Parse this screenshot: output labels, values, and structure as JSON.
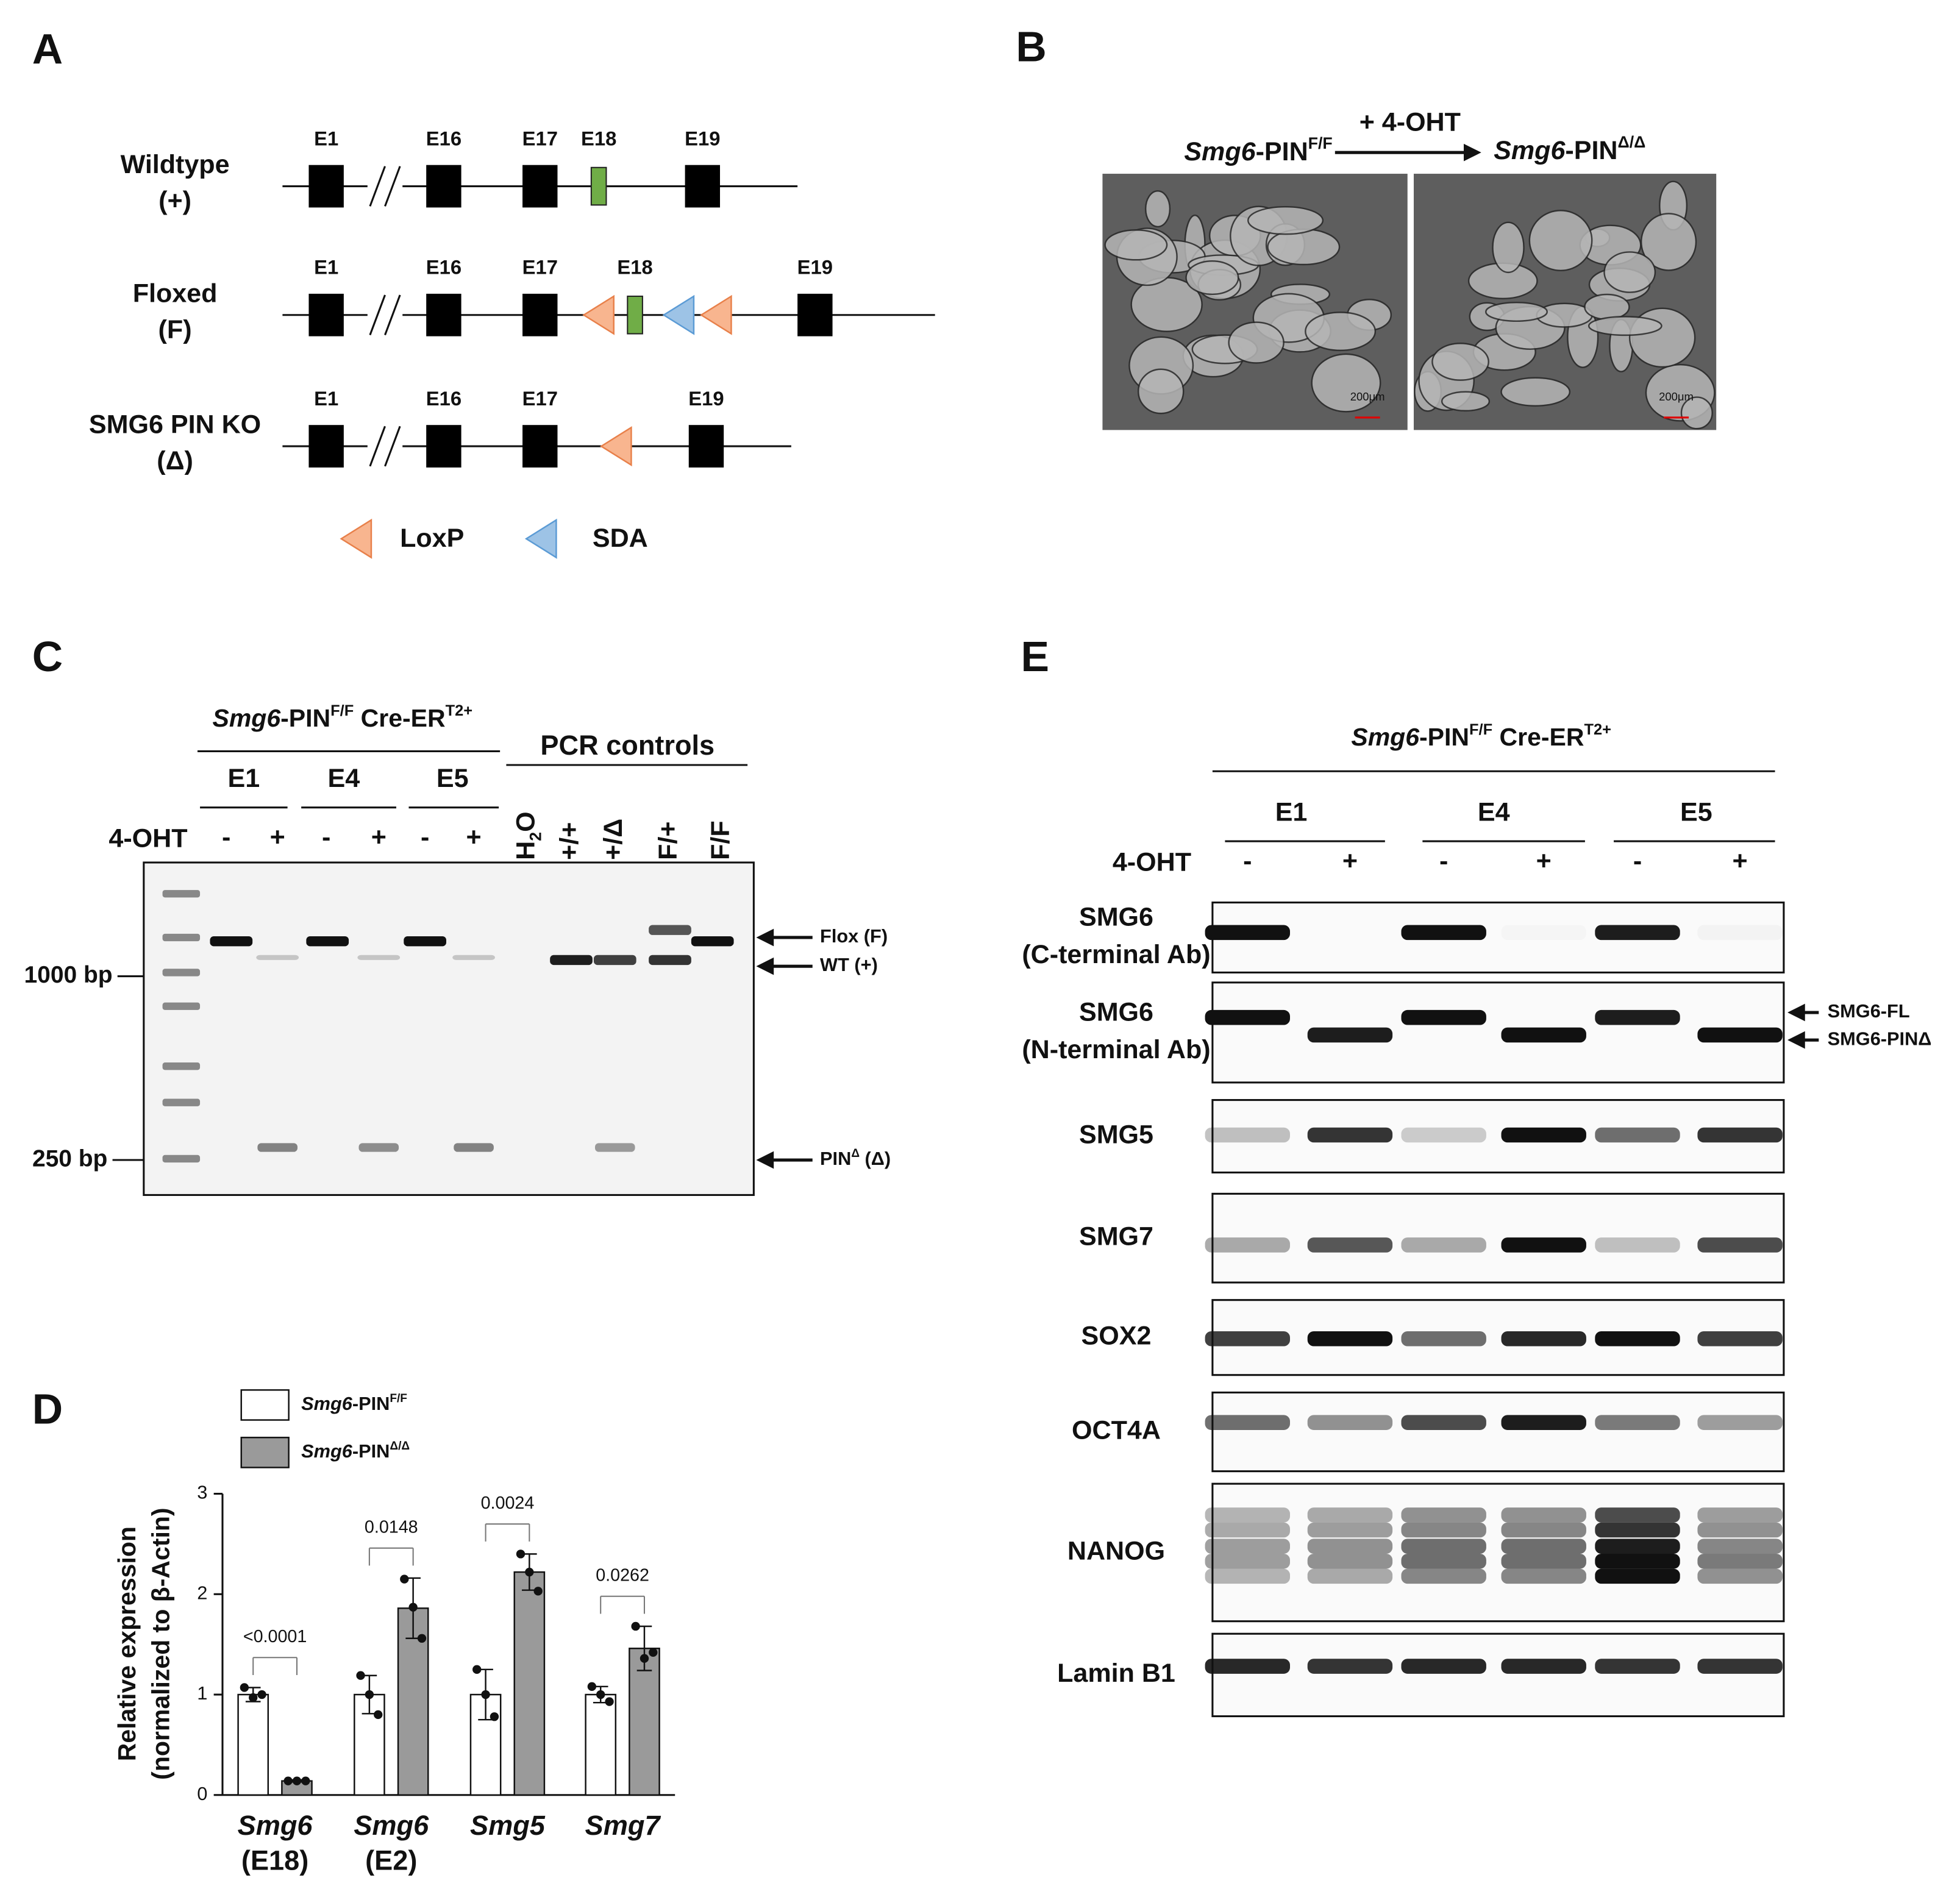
{
  "panel_labels": [
    "A",
    "B",
    "C",
    "D",
    "E"
  ],
  "panels": {
    "a": {
      "constructs": [
        {
          "name": "Wildtype",
          "allele": "(+)",
          "exons": [
            "E1",
            "E16",
            "E17",
            "E18",
            "E19"
          ]
        },
        {
          "name": "Floxed",
          "allele": "(F)",
          "exons": [
            "E1",
            "E16",
            "E17",
            "E18",
            "E19"
          ]
        },
        {
          "name": "SMG6 PIN KO",
          "allele": "(Δ)",
          "exons": [
            "E1",
            "E16",
            "E17",
            "E19"
          ]
        }
      ],
      "legend": [
        "LoxP",
        "SDA"
      ]
    },
    "b": {
      "treatment": "+ 4-OHT",
      "before": {
        "gene": "Smg6",
        "text": "-PIN",
        "sup": "F/F"
      },
      "after": {
        "gene": "Smg6",
        "text": "-PIN",
        "sup": "Δ/Δ"
      },
      "scale_bars": [
        "200μm",
        "200μm"
      ]
    },
    "c": {
      "genotype": {
        "gene": "Smg6",
        "text": "-PIN",
        "sup": "F/F",
        "text2": " Cre-ER",
        "sup2": "T2+"
      },
      "clones": [
        "E1",
        "E4",
        "E5"
      ],
      "treatment_label": "4-OHT",
      "treatment": [
        "-",
        "+",
        "-",
        "+",
        "-",
        "+"
      ],
      "controls_title": "PCR controls",
      "controls": [
        {
          "text": "H",
          "sub": "2",
          "text2": "O"
        },
        {
          "text": "+/+"
        },
        {
          "text": "+/Δ"
        },
        {
          "text": "F/+"
        },
        {
          "text": "F/F"
        }
      ],
      "size_markers": [
        "1000 bp",
        "250 bp"
      ],
      "bands": [
        {
          "text": "Flox (F)"
        },
        {
          "text": "WT (+)"
        },
        {
          "text": "PIN",
          "sup": "Δ",
          "text2": " (Δ)"
        }
      ]
    },
    "e": {
      "genotype": {
        "gene": "Smg6",
        "text": "-PIN",
        "sup": "F/F",
        "text2": " Cre-ER",
        "sup2": "T2+"
      },
      "clones": [
        "E1",
        "E4",
        "E5"
      ],
      "treatment_label": "4-OHT",
      "treatment": [
        "-",
        "+",
        "-",
        "+",
        "-",
        "+"
      ],
      "blots": [
        [
          "SMG6",
          "(C-terminal Ab)"
        ],
        [
          "SMG6",
          "(N-terminal Ab)"
        ],
        [
          "SMG5"
        ],
        [
          "SMG7"
        ],
        [
          "SOX2"
        ],
        [
          "OCT4A"
        ],
        [
          "NANOG"
        ],
        [
          "Lamin B1"
        ]
      ],
      "isoforms": [
        "SMG6-FL",
        "SMG6-PINΔ"
      ]
    }
  },
  "chart_data": {
    "type": "bar",
    "y_label": [
      "Relative expression",
      "(normalized to β-Actin)"
    ],
    "categories": [
      "Smg6",
      "Smg6",
      "Smg5",
      "Smg7"
    ],
    "category_sublabels": [
      "(E18)",
      "(E2)",
      null,
      null
    ],
    "series": [
      {
        "name": {
          "gene": "Smg6",
          "text": "-PIN",
          "sup": "F/F"
        },
        "color": "#ffffff",
        "values": [
          1.0,
          1.0,
          1.0,
          1.0
        ],
        "errors": [
          0.07,
          0.19,
          0.25,
          0.08
        ],
        "points": [
          [
            1.07,
            0.97,
            1.0
          ],
          [
            1.19,
            1.0,
            0.8
          ],
          [
            1.25,
            1.0,
            0.78
          ],
          [
            1.08,
            1.0,
            0.93
          ]
        ]
      },
      {
        "name": {
          "gene": "Smg6",
          "text": "-PIN",
          "sup": "Δ/Δ"
        },
        "color": "#9a9a9a",
        "values": [
          0.14,
          1.86,
          2.22,
          1.46
        ],
        "errors": [
          0.01,
          0.3,
          0.18,
          0.22
        ],
        "points": [
          [
            0.14,
            0.14,
            0.14
          ],
          [
            2.15,
            1.87,
            1.56
          ],
          [
            2.4,
            2.22,
            2.03
          ],
          [
            1.68,
            1.36,
            1.42
          ]
        ]
      }
    ],
    "p_values": [
      "<0.0001",
      "0.0148",
      "0.0024",
      "0.0262"
    ],
    "ylim": [
      0,
      3
    ],
    "yticks": [
      0,
      1,
      2,
      3
    ]
  }
}
